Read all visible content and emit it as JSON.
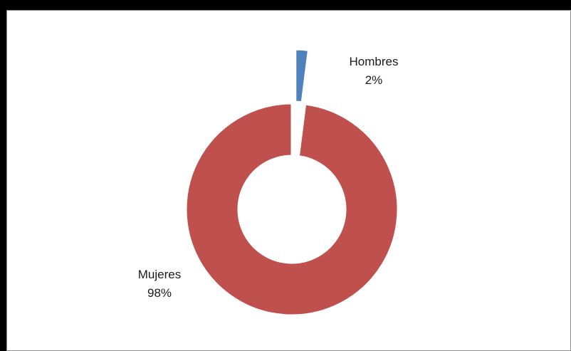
{
  "chart_data": {
    "type": "pie",
    "variant": "donut",
    "exploded_slice": "Hombres",
    "slices": [
      {
        "label": "Hombres",
        "value": 2,
        "value_label": "2%",
        "color": "#4f81bd"
      },
      {
        "label": "Mujeres",
        "value": 98,
        "value_label": "98%",
        "color": "#c0504d"
      }
    ],
    "legend": "none"
  }
}
